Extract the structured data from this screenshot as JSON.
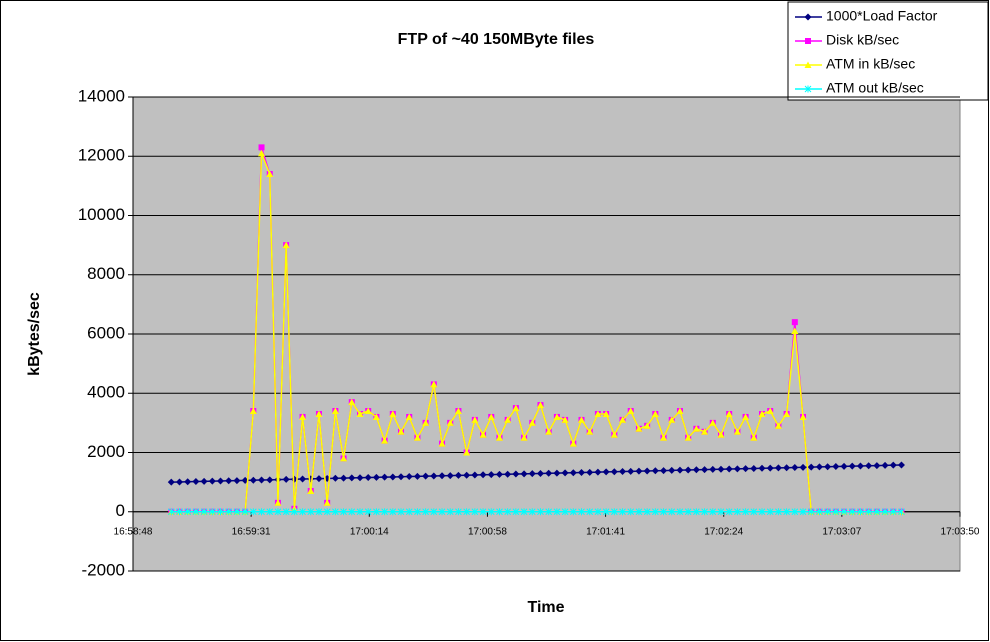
{
  "chart_data": {
    "type": "line",
    "title": "FTP of ~40 150MByte files",
    "x_label": "Time",
    "y_label": "kBytes/sec",
    "xlim": [
      61128,
      61430.4
    ],
    "xticks": [
      {
        "value": 61128,
        "label": "16:58:48"
      },
      {
        "value": 61171.2,
        "label": "16:59:31"
      },
      {
        "value": 61214.4,
        "label": "17:00:14"
      },
      {
        "value": 61257.6,
        "label": "17:00:58"
      },
      {
        "value": 61300.8,
        "label": "17:01:41"
      },
      {
        "value": 61344,
        "label": "17:02:24"
      },
      {
        "value": 61387.2,
        "label": "17:03:07"
      },
      {
        "value": 61430.4,
        "label": "17:03:50"
      }
    ],
    "ylim": [
      -2000,
      14000
    ],
    "yticks": [
      -2000,
      0,
      2000,
      4000,
      6000,
      8000,
      10000,
      12000,
      14000
    ],
    "grid": true,
    "legend": "top-right",
    "x": [
      61142,
      61145,
      61148,
      61151,
      61154,
      61157,
      61160,
      61163,
      61166,
      61169,
      61172,
      61175,
      61178,
      61181,
      61184,
      61187,
      61190,
      61193,
      61196,
      61199,
      61202,
      61205,
      61208,
      61211,
      61214,
      61217,
      61220,
      61223,
      61226,
      61229,
      61232,
      61235,
      61238,
      61241,
      61244,
      61247,
      61250,
      61253,
      61256,
      61259,
      61262,
      61265,
      61268,
      61271,
      61274,
      61277,
      61280,
      61283,
      61286,
      61289,
      61292,
      61295,
      61298,
      61301,
      61304,
      61307,
      61310,
      61313,
      61316,
      61319,
      61322,
      61325,
      61328,
      61331,
      61334,
      61337,
      61340,
      61343,
      61346,
      61349,
      61352,
      61355,
      61358,
      61361,
      61364,
      61367,
      61370,
      61373,
      61376,
      61379,
      61382,
      61385,
      61388,
      61391,
      61394,
      61397,
      61400,
      61403,
      61406,
      61409
    ],
    "series": [
      {
        "name": "1000*Load Factor",
        "color": "#000080",
        "marker": "diamond",
        "values": [
          1000,
          1006,
          1013,
          1019,
          1026,
          1032,
          1039,
          1045,
          1052,
          1058,
          1065,
          1071,
          1078,
          1084,
          1091,
          1097,
          1104,
          1110,
          1117,
          1123,
          1130,
          1136,
          1143,
          1149,
          1156,
          1162,
          1169,
          1175,
          1182,
          1188,
          1195,
          1201,
          1208,
          1214,
          1221,
          1227,
          1234,
          1240,
          1247,
          1253,
          1260,
          1266,
          1273,
          1279,
          1286,
          1292,
          1299,
          1305,
          1312,
          1318,
          1325,
          1331,
          1338,
          1344,
          1351,
          1357,
          1364,
          1370,
          1377,
          1383,
          1390,
          1396,
          1403,
          1409,
          1416,
          1422,
          1429,
          1435,
          1442,
          1448,
          1455,
          1461,
          1468,
          1474,
          1481,
          1487,
          1494,
          1500,
          1507,
          1513,
          1520,
          1526,
          1533,
          1539,
          1546,
          1552,
          1559,
          1565,
          1572,
          1578
        ]
      },
      {
        "name": "Disk kB/sec",
        "color": "#ff00ff",
        "marker": "square",
        "values": [
          0,
          0,
          0,
          0,
          0,
          0,
          0,
          0,
          0,
          0,
          3400,
          12300,
          11400,
          300,
          9000,
          100,
          3200,
          700,
          3300,
          300,
          3400,
          1800,
          3700,
          3300,
          3400,
          3200,
          2400,
          3300,
          2700,
          3200,
          2500,
          3000,
          4300,
          2300,
          3000,
          3400,
          2000,
          3100,
          2600,
          3200,
          2500,
          3100,
          3500,
          2500,
          3000,
          3600,
          2700,
          3200,
          3100,
          2300,
          3100,
          2700,
          3300,
          3300,
          2600,
          3100,
          3400,
          2800,
          2900,
          3300,
          2500,
          3100,
          3400,
          2500,
          2800,
          2700,
          3000,
          2600,
          3300,
          2700,
          3200,
          2500,
          3300,
          3400,
          2900,
          3300,
          6400,
          3200,
          0,
          0,
          0,
          0,
          0,
          0,
          0,
          0,
          0,
          0,
          0,
          0
        ]
      },
      {
        "name": "ATM in kB/sec",
        "color": "#ffff00",
        "marker": "triangle",
        "values": [
          0,
          0,
          0,
          0,
          0,
          0,
          0,
          0,
          0,
          0,
          3400,
          12100,
          11400,
          300,
          9000,
          100,
          3200,
          700,
          3300,
          300,
          3400,
          1800,
          3700,
          3300,
          3400,
          3200,
          2400,
          3300,
          2700,
          3200,
          2500,
          3000,
          4300,
          2300,
          3000,
          3400,
          2000,
          3100,
          2600,
          3200,
          2500,
          3100,
          3500,
          2500,
          3000,
          3600,
          2700,
          3200,
          3100,
          2300,
          3100,
          2700,
          3300,
          3300,
          2600,
          3100,
          3400,
          2800,
          2900,
          3300,
          2500,
          3100,
          3400,
          2500,
          2800,
          2700,
          3000,
          2600,
          3300,
          2700,
          3200,
          2500,
          3300,
          3400,
          2900,
          3300,
          6100,
          3200,
          0,
          0,
          0,
          0,
          0,
          0,
          0,
          0,
          0,
          0,
          0,
          0
        ]
      },
      {
        "name": "ATM out kB/sec",
        "color": "#00ffff",
        "marker": "star",
        "values": [
          0,
          0,
          0,
          0,
          0,
          0,
          0,
          0,
          0,
          0,
          0,
          0,
          0,
          0,
          0,
          0,
          0,
          0,
          0,
          0,
          0,
          0,
          0,
          0,
          0,
          0,
          0,
          0,
          0,
          0,
          0,
          0,
          0,
          0,
          0,
          0,
          0,
          0,
          0,
          0,
          0,
          0,
          0,
          0,
          0,
          0,
          0,
          0,
          0,
          0,
          0,
          0,
          0,
          0,
          0,
          0,
          0,
          0,
          0,
          0,
          0,
          0,
          0,
          0,
          0,
          0,
          0,
          0,
          0,
          0,
          0,
          0,
          0,
          0,
          0,
          0,
          0,
          0,
          0,
          0,
          0,
          0,
          0,
          0,
          0,
          0,
          0,
          0,
          0,
          0
        ]
      }
    ]
  }
}
